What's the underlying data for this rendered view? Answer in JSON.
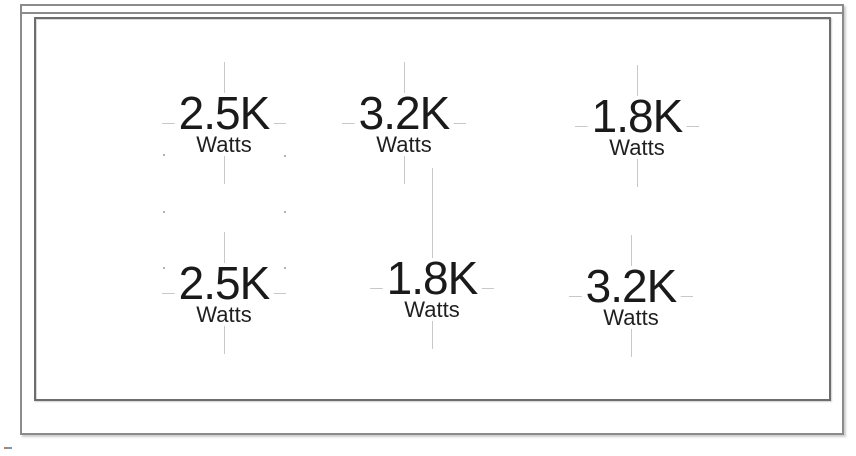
{
  "diagram_title": "cooktop-burner-wattage-diagram",
  "burners": [
    {
      "id": "top-left",
      "power": "2.5K",
      "unit": "Watts"
    },
    {
      "id": "top-center",
      "power": "3.2K",
      "unit": "Watts"
    },
    {
      "id": "top-right",
      "power": "1.8K",
      "unit": "Watts"
    },
    {
      "id": "bottom-left",
      "power": "2.5K",
      "unit": "Watts"
    },
    {
      "id": "bottom-center",
      "power": "1.8K",
      "unit": "Watts"
    },
    {
      "id": "bottom-right",
      "power": "3.2K",
      "unit": "Watts"
    }
  ],
  "colors": {
    "text": "#1a1a1a",
    "crosshair": "#c8c8c8",
    "frame_outer": "#8b8b8b",
    "frame_inner": "#6d6d6d",
    "background": "#ffffff",
    "artifact_pixels": [
      "#c17a65",
      "#74a18c",
      "#8292ae"
    ]
  }
}
